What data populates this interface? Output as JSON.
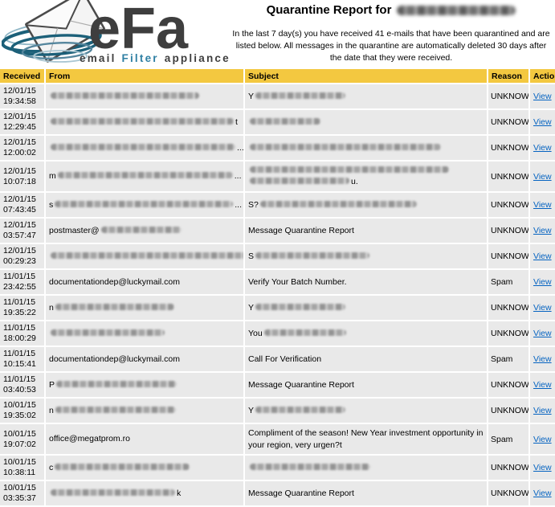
{
  "logo": {
    "brand": "eFa",
    "tagline": {
      "email": "email",
      "filter": "Filter",
      "appliance": "appliance"
    }
  },
  "report": {
    "title": "Quarantine Report for",
    "intro": "In the last 7 day(s) you have received 41 e-mails that have been quarantined and are listed below. All messages in the quarantine are automatically deleted 30 days after the date that they were received."
  },
  "table": {
    "columns": {
      "received": "Received",
      "from": "From",
      "subject": "Subject",
      "reason": "Reason",
      "action": "Action"
    },
    "action_label": "View",
    "rows": [
      {
        "date": "12/01/15",
        "time": "19:34:58",
        "from": [
          {
            "b": 185
          }
        ],
        "subject": [
          [
            {
              "t": "Y"
            },
            {
              "b": 112
            }
          ]
        ],
        "reason": "UNKNOWN"
      },
      {
        "date": "12/01/15",
        "time": "12:29:45",
        "from": [
          {
            "b": 228
          },
          {
            "t": "t"
          }
        ],
        "subject": [
          [
            {
              "b": 88
            }
          ]
        ],
        "reason": "UNKNOWN"
      },
      {
        "date": "12/01/15",
        "time": "12:00:02",
        "from": [
          {
            "b": 230
          },
          {
            "t": "..."
          }
        ],
        "subject": [
          [
            {
              "b": 238
            }
          ]
        ],
        "reason": "UNKNOWN"
      },
      {
        "date": "12/01/15",
        "time": "10:07:18",
        "from": [
          {
            "t": "m"
          },
          {
            "b": 218
          },
          {
            "t": "..."
          }
        ],
        "subject": [
          [
            {
              "b": 248
            }
          ],
          [
            {
              "b": 124
            },
            {
              "t": "u."
            }
          ]
        ],
        "reason": "UNKNOWN",
        "tall": true
      },
      {
        "date": "12/01/15",
        "time": "07:43:45",
        "from": [
          {
            "t": "s"
          },
          {
            "b": 222
          },
          {
            "t": "..."
          }
        ],
        "subject": [
          [
            {
              "t": "S?"
            },
            {
              "b": 195
            }
          ]
        ],
        "reason": "UNKNOWN"
      },
      {
        "date": "12/01/15",
        "time": "03:57:47",
        "from": [
          {
            "t": "postmaster@"
          },
          {
            "b": 100
          }
        ],
        "subject": [
          [
            {
              "t": "Message Quarantine Report"
            }
          ]
        ],
        "reason": "UNKNOWN"
      },
      {
        "date": "12/01/15",
        "time": "00:29:23",
        "from": [
          {
            "b": 250
          }
        ],
        "subject": [
          [
            {
              "t": "S"
            },
            {
              "b": 142
            }
          ]
        ],
        "reason": "UNKNOWN"
      },
      {
        "date": "11/01/15",
        "time": "23:42:55",
        "from": [
          {
            "t": "documentationdep@luckymail.com"
          }
        ],
        "subject": [
          [
            {
              "t": "Verify Your Batch Number."
            }
          ]
        ],
        "reason": "Spam"
      },
      {
        "date": "11/01/15",
        "time": "19:35:22",
        "from": [
          {
            "t": "n"
          },
          {
            "b": 148
          }
        ],
        "subject": [
          [
            {
              "t": "Y"
            },
            {
              "b": 112
            }
          ]
        ],
        "reason": "UNKNOWN"
      },
      {
        "date": "11/01/15",
        "time": "18:00:29",
        "from": [
          {
            "b": 142
          }
        ],
        "subject": [
          [
            {
              "t": "You"
            },
            {
              "b": 102
            }
          ]
        ],
        "reason": "UNKNOWN"
      },
      {
        "date": "11/01/15",
        "time": "10:15:41",
        "from": [
          {
            "t": "documentationdep@luckymail.com"
          }
        ],
        "subject": [
          [
            {
              "t": "Call For Verification"
            }
          ]
        ],
        "reason": "Spam"
      },
      {
        "date": "11/01/15",
        "time": "03:40:53",
        "from": [
          {
            "t": "P"
          },
          {
            "b": 150
          }
        ],
        "subject": [
          [
            {
              "t": "Message Quarantine Report"
            }
          ]
        ],
        "reason": "UNKNOWN"
      },
      {
        "date": "10/01/15",
        "time": "19:35:02",
        "from": [
          {
            "t": "n"
          },
          {
            "b": 150
          }
        ],
        "subject": [
          [
            {
              "t": "Y"
            },
            {
              "b": 112
            }
          ]
        ],
        "reason": "UNKNOWN"
      },
      {
        "date": "10/01/15",
        "time": "19:07:02",
        "from": [
          {
            "t": "office@megatprom.ro"
          }
        ],
        "subject": [
          [
            {
              "t": "Compliment of the season! New Year investment opportunity in your region, very urgen?t"
            }
          ]
        ],
        "reason": "Spam",
        "tall": true
      },
      {
        "date": "10/01/15",
        "time": "10:38:11",
        "from": [
          {
            "t": "c"
          },
          {
            "b": 168
          }
        ],
        "subject": [
          [
            {
              "b": 150
            }
          ]
        ],
        "reason": "UNKNOWN"
      },
      {
        "date": "10/01/15",
        "time": "03:35:37",
        "from": [
          {
            "b": 155
          },
          {
            "t": "k"
          }
        ],
        "subject": [
          [
            {
              "t": "Message Quarantine Report"
            }
          ]
        ],
        "reason": "UNKNOWN"
      }
    ]
  },
  "colors": {
    "header_bg": "#F3C840",
    "row_bg": "#E9E9E9",
    "link_blue": "#0563C1",
    "logo_teal": "#1C6079",
    "logo_dark": "#3E3E3E",
    "logo_filter_blue": "#2E7FA3"
  }
}
